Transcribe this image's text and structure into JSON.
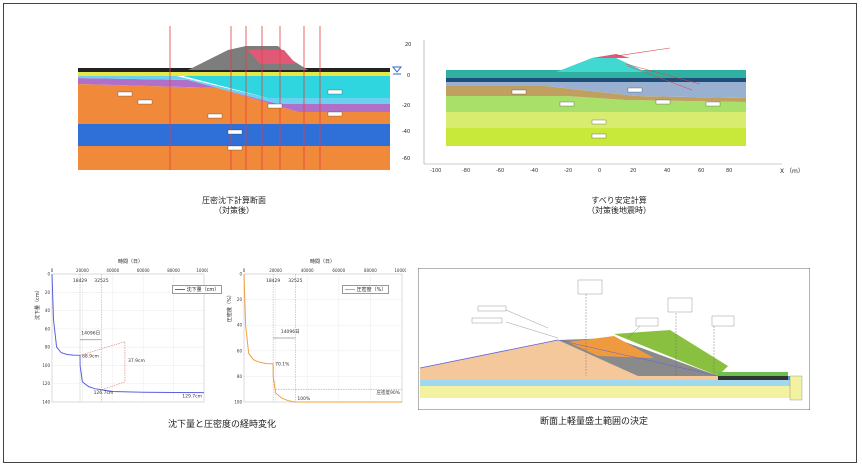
{
  "panel1": {
    "caption_line1": "圧密沈下計算断面",
    "caption_line2": "（対策後）"
  },
  "panel2": {
    "caption_line1": "すべり安定計算",
    "caption_line2": "（対策後地震時）",
    "x_axis_label": "X （m）",
    "x_ticks": [
      "-100",
      "-80",
      "-60",
      "-40",
      "-20",
      "0",
      "20",
      "40",
      "60",
      "80"
    ],
    "y_ticks": [
      "20",
      "0",
      "-20",
      "-40",
      "-60"
    ]
  },
  "panel3": {
    "x_axis_title": "時間（日）",
    "y_axis_title": "沈下量（cm）",
    "x_ticks": [
      "0",
      "20000",
      "40000",
      "60000",
      "80000",
      "100000"
    ],
    "y_ticks": [
      "0",
      "20",
      "40",
      "60",
      "80",
      "100",
      "120",
      "140"
    ],
    "legend": "沈下量（cm）",
    "marker_t1": "18429",
    "marker_t2": "32525",
    "ann_days": "14096日",
    "ann_v1": "88.9cm",
    "ann_diff": "37.9cm",
    "ann_v2": "126.7cm",
    "ann_end": "129.7cm"
  },
  "panel4": {
    "x_axis_title": "時間（日）",
    "y_axis_title": "圧密度（%）",
    "x_ticks": [
      "0",
      "20000",
      "40000",
      "60000",
      "80000",
      "100000"
    ],
    "y_ticks": [
      "0",
      "20",
      "40",
      "60",
      "80",
      "100"
    ],
    "legend": "圧密度（%）",
    "marker_t1": "18429",
    "marker_t2": "32525",
    "ann_days": "14096日",
    "ann_v1": "70.1%",
    "ann_v2": "100%",
    "ann_line": "圧密度90%"
  },
  "panel5": {
    "caption": "断面上軽量盛土範囲の決定"
  },
  "bottom_caption_left": "沈下量と圧密度の経時変化",
  "colors": {
    "series_blue": "#5a5fe0",
    "series_orange": "#f0a040",
    "annotation_red": "#e05050"
  },
  "chart_data": [
    {
      "type": "line",
      "x_title": "時間（日）",
      "y_title": "沈下量（cm）",
      "xlim": [
        0,
        100000
      ],
      "ylim": [
        140,
        0
      ],
      "series": [
        {
          "name": "沈下量（cm）",
          "x": [
            0,
            1000,
            3000,
            6000,
            10000,
            14000,
            18429,
            18500,
            20000,
            24000,
            28000,
            32525,
            40000,
            60000,
            80000,
            100000
          ],
          "y": [
            0,
            50,
            80,
            86,
            88,
            88.7,
            88.9,
            100,
            118,
            123,
            125.5,
            126.7,
            128.5,
            129.3,
            129.6,
            129.7
          ]
        }
      ]
    },
    {
      "type": "line",
      "x_title": "時間（日）",
      "y_title": "圧密度（%）",
      "xlim": [
        0,
        100000
      ],
      "ylim": [
        100,
        0
      ],
      "series": [
        {
          "name": "圧密度（%）",
          "x": [
            0,
            1000,
            3000,
            6000,
            10000,
            14000,
            18429,
            18500,
            20000,
            24000,
            28000,
            32525,
            40000,
            60000,
            80000,
            100000
          ],
          "y": [
            0,
            40,
            62,
            67,
            69,
            70,
            70.1,
            80,
            93,
            97,
            99,
            100,
            100,
            100,
            100,
            100
          ]
        }
      ]
    }
  ]
}
